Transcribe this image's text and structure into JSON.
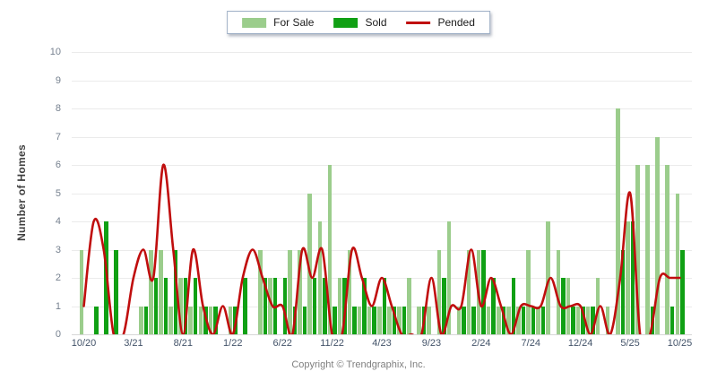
{
  "legend": {
    "items": [
      {
        "label": "For Sale"
      },
      {
        "label": "Sold"
      },
      {
        "label": "Pended"
      }
    ]
  },
  "footer": {
    "copyright": "Copyright © Trendgraphix, Inc."
  },
  "chart_data": {
    "type": "bar",
    "title": "",
    "xlabel": "",
    "ylabel": "Number of Homes",
    "ylim": [
      0,
      10
    ],
    "ytick_interval": 1,
    "grid": "horizontal",
    "legend_position": "top-center",
    "categories": [
      "10/20",
      "11/20",
      "12/20",
      "1/21",
      "2/21",
      "3/21",
      "4/21",
      "5/21",
      "6/21",
      "7/21",
      "8/21",
      "9/21",
      "10/21",
      "11/21",
      "12/21",
      "1/22",
      "2/22",
      "3/22",
      "4/22",
      "5/22",
      "6/22",
      "7/22",
      "8/22",
      "9/22",
      "10/22",
      "11/22",
      "12/22",
      "1/23",
      "2/23",
      "3/23",
      "4/23",
      "5/23",
      "6/23",
      "7/23",
      "8/23",
      "9/23",
      "10/23",
      "11/23",
      "12/23",
      "1/24",
      "2/24",
      "3/24",
      "4/24",
      "5/24",
      "6/24",
      "7/24",
      "8/24",
      "9/24",
      "10/24",
      "11/24",
      "12/24",
      "1/25",
      "2/25",
      "3/25",
      "4/25",
      "5/25",
      "6/25",
      "7/25",
      "8/25",
      "9/25",
      "10/25"
    ],
    "xtick_labels": [
      "10/20",
      "3/21",
      "8/21",
      "1/22",
      "6/22",
      "11/22",
      "4/23",
      "9/23",
      "2/24",
      "7/24",
      "12/24",
      "5/25",
      "10/25"
    ],
    "xtick_every": 5,
    "series": [
      {
        "name": "For Sale",
        "kind": "bar",
        "color": "#9BCD8C",
        "values": [
          3,
          0,
          0,
          0,
          0,
          0,
          1,
          3,
          3,
          1,
          2,
          1,
          1,
          1,
          0,
          1,
          0,
          0,
          3,
          2,
          0,
          3,
          3,
          5,
          4,
          6,
          2,
          3,
          1,
          1,
          1,
          1,
          1,
          2,
          1,
          1,
          3,
          4,
          1,
          3,
          3,
          1,
          1,
          1,
          1,
          3,
          1,
          4,
          3,
          2,
          1,
          1,
          2,
          1,
          8,
          4,
          6,
          6,
          7,
          6,
          5
        ]
      },
      {
        "name": "Sold",
        "kind": "bar",
        "color": "#10A014",
        "values": [
          0,
          1,
          4,
          3,
          0,
          0,
          1,
          2,
          2,
          3,
          2,
          2,
          1,
          1,
          0,
          1,
          2,
          0,
          2,
          2,
          2,
          1,
          1,
          2,
          2,
          1,
          2,
          1,
          2,
          1,
          2,
          1,
          1,
          0,
          1,
          0,
          2,
          0,
          1,
          1,
          3,
          2,
          1,
          2,
          1,
          1,
          1,
          0,
          2,
          1,
          1,
          1,
          0,
          0,
          3,
          4,
          0,
          1,
          0,
          1,
          3
        ]
      },
      {
        "name": "Pended",
        "kind": "line",
        "color": "#C00E0E",
        "values": [
          1,
          4,
          3,
          0,
          0,
          2,
          3,
          2,
          6,
          3,
          0,
          3,
          1,
          0,
          1,
          0,
          2,
          3,
          2,
          1,
          1,
          0,
          3,
          2,
          3,
          0,
          0,
          3,
          2,
          1,
          2,
          1,
          0,
          0,
          0,
          2,
          0,
          1,
          1,
          3,
          1,
          2,
          1,
          0,
          1,
          1,
          1,
          2,
          1,
          1,
          1,
          0,
          1,
          0,
          2,
          5,
          0,
          0,
          2,
          2,
          2
        ]
      }
    ],
    "colors": {
      "gridline": "#EBEBEB",
      "xtick_text": "#44546A",
      "ytick_text": "#76818F",
      "ylabel_text": "#3F3F3F",
      "legend_border": "#9FB0C6"
    }
  }
}
